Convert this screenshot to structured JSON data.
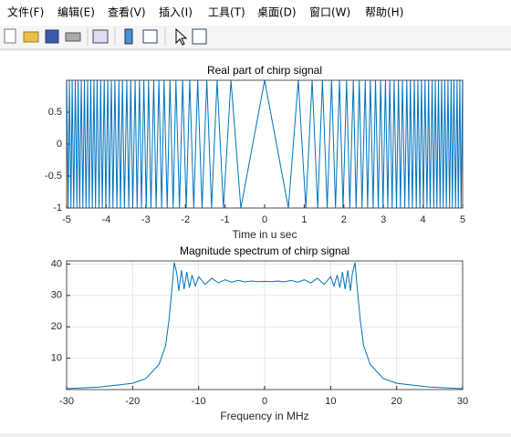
{
  "menu": [
    "文件(F)",
    "编辑(E)",
    "查看(V)",
    "插入(I)",
    "工具(T)",
    "桌面(D)",
    "窗口(W)",
    "帮助(H)"
  ],
  "chart_data": [
    {
      "type": "line",
      "title": "Real part of chirp signal",
      "x_label": "Time in u sec",
      "color": "#0072bd",
      "grid": false,
      "xlim": [
        -5,
        5
      ],
      "xticks": [
        -5,
        -4,
        -3,
        -2,
        -1,
        0,
        1,
        2,
        3,
        4,
        5
      ],
      "ylim": [
        -1,
        1
      ],
      "yticks": [
        -1,
        -0.5,
        0,
        0.5
      ],
      "x": [
        -5,
        -4.96,
        -4.93,
        -4.89,
        -4.86,
        -4.82,
        -4.78,
        -4.74,
        -4.71,
        -4.67,
        -4.63,
        -4.59,
        -4.55,
        -4.51,
        -4.47,
        -4.43,
        -4.39,
        -4.35,
        -4.31,
        -4.27,
        -4.23,
        -4.18,
        -4.14,
        -4.1,
        -4.05,
        -4.01,
        -3.96,
        -3.92,
        -3.87,
        -3.83,
        -3.78,
        -3.73,
        -3.68,
        -3.64,
        -3.59,
        -3.54,
        -3.48,
        -3.43,
        -3.38,
        -3.33,
        -3.27,
        -3.22,
        -3.16,
        -3.11,
        -3.05,
        -2.99,
        -2.93,
        -2.87,
        -2.8,
        -2.74,
        -2.67,
        -2.6,
        -2.54,
        -2.46,
        -2.39,
        -2.31,
        -2.24,
        -2.15,
        -2.07,
        -1.98,
        -1.89,
        -1.79,
        -1.69,
        -1.58,
        -1.46,
        -1.34,
        -1.2,
        -1.04,
        -0.85,
        -0.6,
        0,
        0.6,
        0.85,
        1.04,
        1.2,
        1.34,
        1.46,
        1.58,
        1.69,
        1.79,
        1.89,
        1.98,
        2.07,
        2.15,
        2.24,
        2.31,
        2.39,
        2.46,
        2.54,
        2.6,
        2.67,
        2.74,
        2.8,
        2.87,
        2.93,
        2.99,
        3.05,
        3.11,
        3.16,
        3.22,
        3.27,
        3.33,
        3.38,
        3.43,
        3.48,
        3.54,
        3.59,
        3.64,
        3.68,
        3.73,
        3.78,
        3.83,
        3.87,
        3.92,
        3.96,
        4.01,
        4.05,
        4.1,
        4.14,
        4.18,
        4.23,
        4.27,
        4.31,
        4.35,
        4.39,
        4.43,
        4.47,
        4.51,
        4.55,
        4.59,
        4.63,
        4.67,
        4.71,
        4.74,
        4.78,
        4.82,
        4.86,
        4.89,
        4.93,
        4.96,
        5
      ],
      "values": [
        1,
        -1,
        1,
        -1,
        1,
        -1,
        1,
        -1,
        1,
        -1,
        1,
        -1,
        1,
        -1,
        1,
        -1,
        1,
        -1,
        1,
        -1,
        1,
        -1,
        1,
        -1,
        1,
        -1,
        1,
        -1,
        1,
        -1,
        1,
        -1,
        1,
        -1,
        1,
        -1,
        1,
        -1,
        1,
        -1,
        1,
        -1,
        1,
        -1,
        1,
        -1,
        1,
        -1,
        1,
        -1,
        1,
        -1,
        1,
        -1,
        1,
        -1,
        1,
        -1,
        1,
        -1,
        1,
        -1,
        1,
        -1,
        1,
        -1,
        1,
        -1,
        1,
        -1,
        1,
        -1,
        1,
        -1,
        1,
        -1,
        1,
        -1,
        1,
        -1,
        1,
        -1,
        1,
        -1,
        1,
        -1,
        1,
        -1,
        1,
        -1,
        1,
        -1,
        1,
        -1,
        1,
        -1,
        1,
        -1,
        1,
        -1,
        1,
        -1,
        1,
        -1,
        1,
        -1,
        1,
        -1,
        1,
        -1,
        1,
        -1,
        1,
        -1,
        1,
        -1,
        1,
        -1,
        1,
        -1,
        1,
        -1,
        1,
        -1,
        1,
        -1,
        1,
        -1,
        1,
        -1,
        1,
        -1,
        1,
        -1,
        1,
        -1,
        1,
        -1,
        1,
        -1,
        1
      ]
    },
    {
      "type": "line",
      "title": "Magnitude spectrum of chirp signal",
      "x_label": "Frequency in MHz",
      "color": "#0072bd",
      "grid": true,
      "xlim": [
        -30,
        30
      ],
      "xticks": [
        -30,
        -20,
        -10,
        0,
        10,
        20,
        30
      ],
      "ylim": [
        0,
        41
      ],
      "yticks": [
        10,
        20,
        30,
        40
      ],
      "x": [
        -30,
        -25,
        -20,
        -18,
        -16,
        -15,
        -14.5,
        -14,
        -13.7,
        -13.3,
        -13,
        -12.6,
        -12.2,
        -11.8,
        -11.4,
        -11,
        -10.5,
        -10,
        -9,
        -8,
        -7,
        -6,
        -5,
        -4,
        -3,
        -2,
        -1,
        0,
        1,
        2,
        3,
        4,
        5,
        6,
        7,
        8,
        9,
        10,
        10.5,
        11,
        11.4,
        11.8,
        12.2,
        12.6,
        13,
        13.3,
        13.7,
        14,
        14.5,
        15,
        16,
        18,
        20,
        25,
        30
      ],
      "values": [
        0.3,
        0.8,
        2,
        3.5,
        8,
        14,
        22,
        33,
        40.5,
        37,
        31.5,
        38,
        32,
        37.5,
        32.5,
        36.5,
        33,
        36,
        33.5,
        35.5,
        34,
        35,
        34.2,
        34.8,
        34.3,
        34.6,
        34.4,
        34.5,
        34.4,
        34.6,
        34.3,
        34.8,
        34.2,
        35,
        34,
        35.5,
        33.5,
        36,
        33,
        36.5,
        32.5,
        37.5,
        32,
        38,
        31.5,
        37,
        40.5,
        33,
        22,
        14,
        8,
        3.5,
        2,
        0.8,
        0.3
      ]
    }
  ]
}
